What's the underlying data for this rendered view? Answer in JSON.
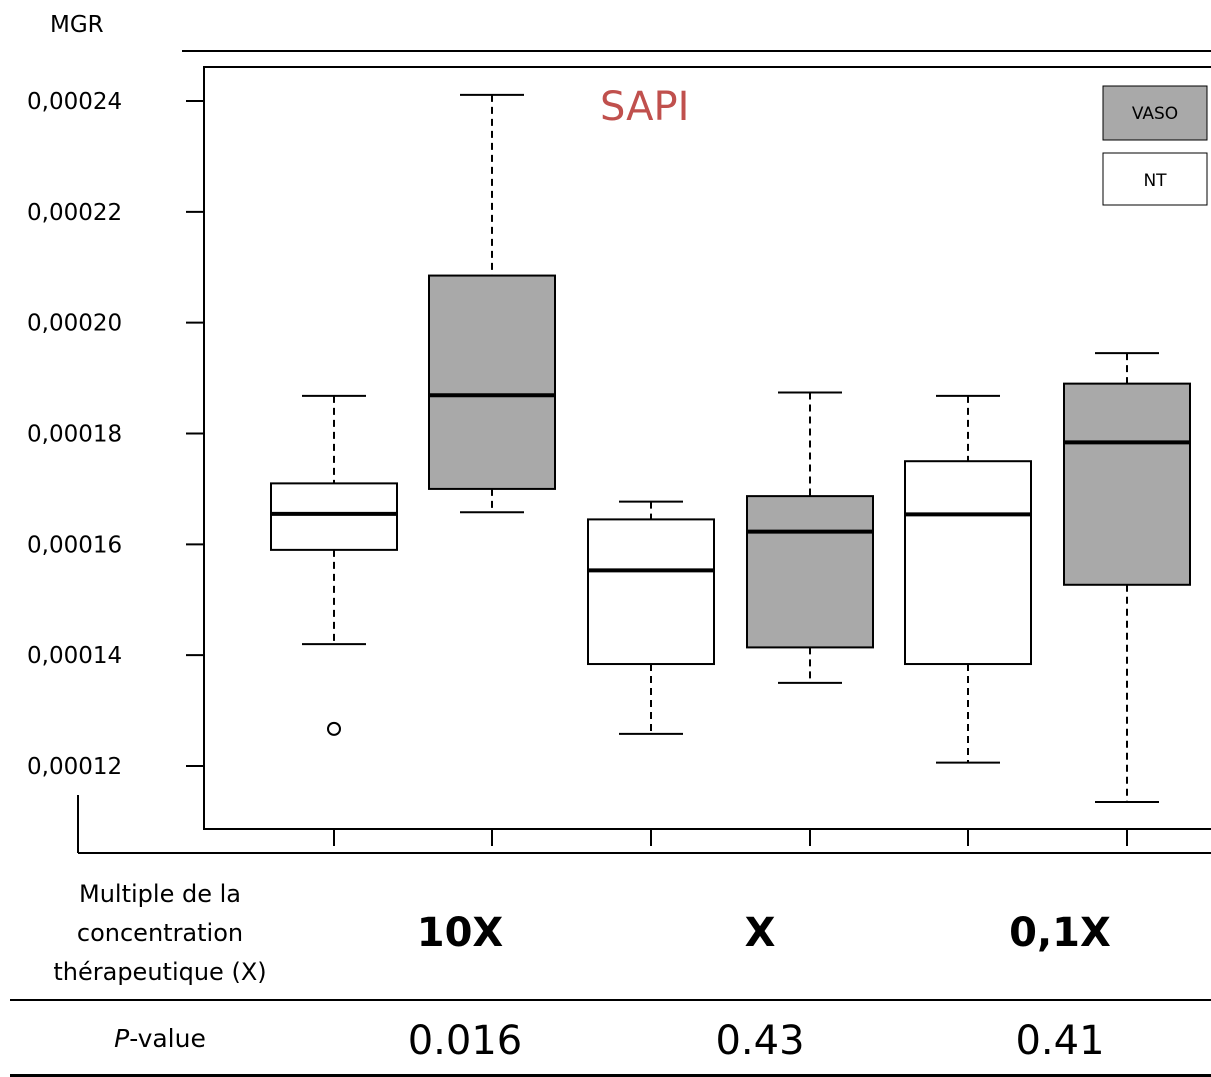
{
  "chart_data": {
    "type": "boxplot",
    "title": "SAPI",
    "ylabel": "MGR",
    "ylim": [
      0.000108,
      0.000246
    ],
    "yticks": [
      0.00012,
      0.00014,
      0.00016,
      0.00018,
      0.0002,
      0.00022,
      0.00024
    ],
    "yticklabels": [
      "0,00012",
      "0,00014",
      "0,00016",
      "0,00018",
      "0,00020",
      "0,00022",
      "0,00024"
    ],
    "legend": {
      "position": "top-right",
      "entries": [
        {
          "label": "VASO",
          "color": "#a9a9a9"
        },
        {
          "label": "NT",
          "color": "#ffffff"
        }
      ]
    },
    "boxes": [
      {
        "group": "10X",
        "series": "NT",
        "color": "#ffffff",
        "whisker_low": 0.000142,
        "q1": 0.000159,
        "median": 0.0001655,
        "q3": 0.000171,
        "whisker_high": 0.0001868,
        "outliers": [
          0.0001267
        ]
      },
      {
        "group": "10X",
        "series": "VASO",
        "color": "#a9a9a9",
        "whisker_low": 0.0001658,
        "q1": 0.00017,
        "median": 0.0001869,
        "q3": 0.0002085,
        "whisker_high": 0.0002411,
        "outliers": []
      },
      {
        "group": "X",
        "series": "NT",
        "color": "#ffffff",
        "whisker_low": 0.0001258,
        "q1": 0.0001384,
        "median": 0.0001553,
        "q3": 0.0001645,
        "whisker_high": 0.0001677,
        "outliers": []
      },
      {
        "group": "X",
        "series": "VASO",
        "color": "#a9a9a9",
        "whisker_low": 0.000135,
        "q1": 0.0001414,
        "median": 0.0001623,
        "q3": 0.0001687,
        "whisker_high": 0.0001874,
        "outliers": []
      },
      {
        "group": "0,1X",
        "series": "NT",
        "color": "#ffffff",
        "whisker_low": 0.0001206,
        "q1": 0.0001384,
        "median": 0.0001654,
        "q3": 0.000175,
        "whisker_high": 0.0001868,
        "outliers": []
      },
      {
        "group": "0,1X",
        "series": "VASO",
        "color": "#a9a9a9",
        "whisker_low": 0.0001135,
        "q1": 0.0001527,
        "median": 0.0001784,
        "q3": 0.000189,
        "whisker_high": 0.0001945,
        "outliers": []
      }
    ]
  },
  "table": {
    "concentration_label": [
      "Multiple de la",
      "concentration",
      "thérapeutique (X)"
    ],
    "groups": [
      "10X",
      "X",
      "0,1X"
    ],
    "pvalue_label_italic": "P",
    "pvalue_label_rest": "-value",
    "pvalues": [
      "0.016",
      "0.43",
      "0.41"
    ]
  }
}
